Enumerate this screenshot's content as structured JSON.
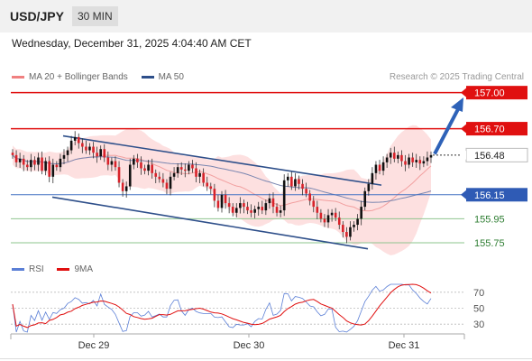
{
  "header": {
    "symbol": "USD/JPY",
    "timeframe": "30 MIN"
  },
  "datetime": "Wednesday, December 31, 2025 4:04:40 AM CET",
  "legend": [
    {
      "label": "MA 20 + Bollinger Bands",
      "color": "#f08080"
    },
    {
      "label": "MA 50",
      "color": "#2e4f8a"
    }
  ],
  "copyright": "Research © 2025 Trading Central",
  "rsi_legend": [
    {
      "label": "RSI",
      "color": "#5b7fd6"
    },
    {
      "label": "9MA",
      "color": "#e01010"
    }
  ],
  "chart_data": {
    "type": "candlestick",
    "price_ylim": [
      155.63,
      157.08
    ],
    "current_price": 156.48,
    "levels": [
      {
        "label": "157.00",
        "value": 157.0,
        "style": "resistance-red"
      },
      {
        "label": "156.70",
        "value": 156.7,
        "style": "resistance-red"
      },
      {
        "label": "156.48",
        "value": 156.48,
        "style": "current"
      },
      {
        "label": "156.15",
        "value": 156.15,
        "style": "pivot-blue"
      },
      {
        "label": "155.95",
        "value": 155.95,
        "style": "support-green"
      },
      {
        "label": "155.75",
        "value": 155.75,
        "style": "support-green"
      }
    ],
    "channel": {
      "upper": [
        [
          0.06,
          156.64
        ],
        [
          0.42,
          156.23
        ]
      ],
      "lower": [
        [
          0.05,
          156.13
        ],
        [
          0.41,
          155.7
        ]
      ]
    },
    "arrow": [
      [
        0.48,
        156.49
      ],
      [
        0.51,
        156.93
      ]
    ],
    "xticks": [
      {
        "label": "Dec 29",
        "pos": 0.1
      },
      {
        "label": "Dec 30",
        "pos": 0.27
      },
      {
        "label": "Dec 31",
        "pos": 0.44
      }
    ],
    "closes": [
      156.48,
      156.42,
      156.45,
      156.4,
      156.38,
      156.44,
      156.4,
      156.46,
      156.35,
      156.43,
      156.3,
      156.4,
      156.38,
      156.45,
      156.48,
      156.52,
      156.6,
      156.63,
      156.58,
      156.55,
      156.52,
      156.55,
      156.5,
      156.47,
      156.53,
      156.46,
      156.4,
      156.43,
      156.38,
      156.25,
      156.18,
      156.22,
      156.4,
      156.45,
      156.42,
      156.37,
      156.35,
      156.4,
      156.33,
      156.3,
      156.28,
      156.25,
      156.2,
      156.3,
      156.33,
      156.38,
      156.36,
      156.35,
      156.4,
      156.37,
      156.3,
      156.33,
      156.25,
      156.22,
      156.2,
      156.1,
      156.04,
      156.15,
      156.08,
      156.05,
      156.0,
      156.04,
      156.08,
      156.05,
      156.02,
      156.0,
      156.03,
      156.05,
      156.02,
      156.08,
      156.12,
      156.05,
      156.0,
      156.02,
      156.27,
      156.3,
      156.22,
      156.28,
      156.24,
      156.2,
      156.16,
      156.1,
      156.05,
      156.0,
      155.95,
      155.92,
      155.98,
      156.0,
      155.96,
      155.9,
      155.84,
      155.8,
      155.88,
      155.9,
      155.95,
      156.05,
      156.18,
      156.24,
      156.33,
      156.4,
      156.35,
      156.42,
      156.46,
      156.5,
      156.45,
      156.48,
      156.43,
      156.4,
      156.46,
      156.42,
      156.44,
      156.41,
      156.43,
      156.46,
      156.48
    ],
    "rsi": {
      "ylim": [
        20,
        80
      ],
      "ticks": [
        70,
        50,
        30
      ]
    }
  }
}
